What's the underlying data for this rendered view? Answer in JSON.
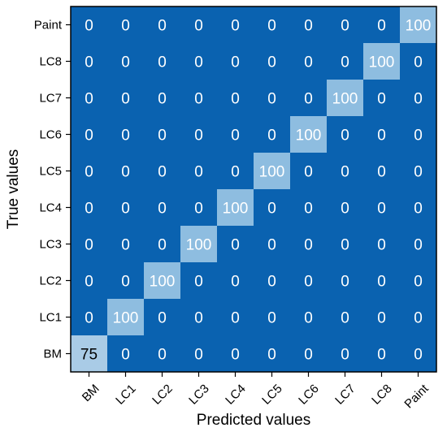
{
  "chart_data": {
    "type": "heatmap",
    "xlabel": "Predicted values",
    "ylabel": "True values",
    "x_categories": [
      "BM",
      "LC1",
      "LC2",
      "LC3",
      "LC4",
      "LC5",
      "LC6",
      "LC7",
      "LC8",
      "Paint"
    ],
    "y_categories": [
      "BM",
      "LC1",
      "LC2",
      "LC3",
      "LC4",
      "LC5",
      "LC6",
      "LC7",
      "LC8",
      "Paint"
    ],
    "matrix": [
      [
        75,
        0,
        0,
        0,
        0,
        0,
        0,
        0,
        0,
        0
      ],
      [
        0,
        100,
        0,
        0,
        0,
        0,
        0,
        0,
        0,
        0
      ],
      [
        0,
        0,
        100,
        0,
        0,
        0,
        0,
        0,
        0,
        0
      ],
      [
        0,
        0,
        0,
        100,
        0,
        0,
        0,
        0,
        0,
        0
      ],
      [
        0,
        0,
        0,
        0,
        100,
        0,
        0,
        0,
        0,
        0
      ],
      [
        0,
        0,
        0,
        0,
        0,
        100,
        0,
        0,
        0,
        0
      ],
      [
        0,
        0,
        0,
        0,
        0,
        0,
        100,
        0,
        0,
        0
      ],
      [
        0,
        0,
        0,
        0,
        0,
        0,
        0,
        100,
        0,
        0
      ],
      [
        0,
        0,
        0,
        0,
        0,
        0,
        0,
        0,
        100,
        0
      ],
      [
        0,
        0,
        0,
        0,
        0,
        0,
        0,
        0,
        0,
        100
      ]
    ],
    "colors": {
      "zero": "#0a62b0",
      "high": "#8ebde0",
      "mid": "#a9cbe6",
      "text": "#ffffff",
      "text_dark": "#000000"
    },
    "grid": false
  }
}
